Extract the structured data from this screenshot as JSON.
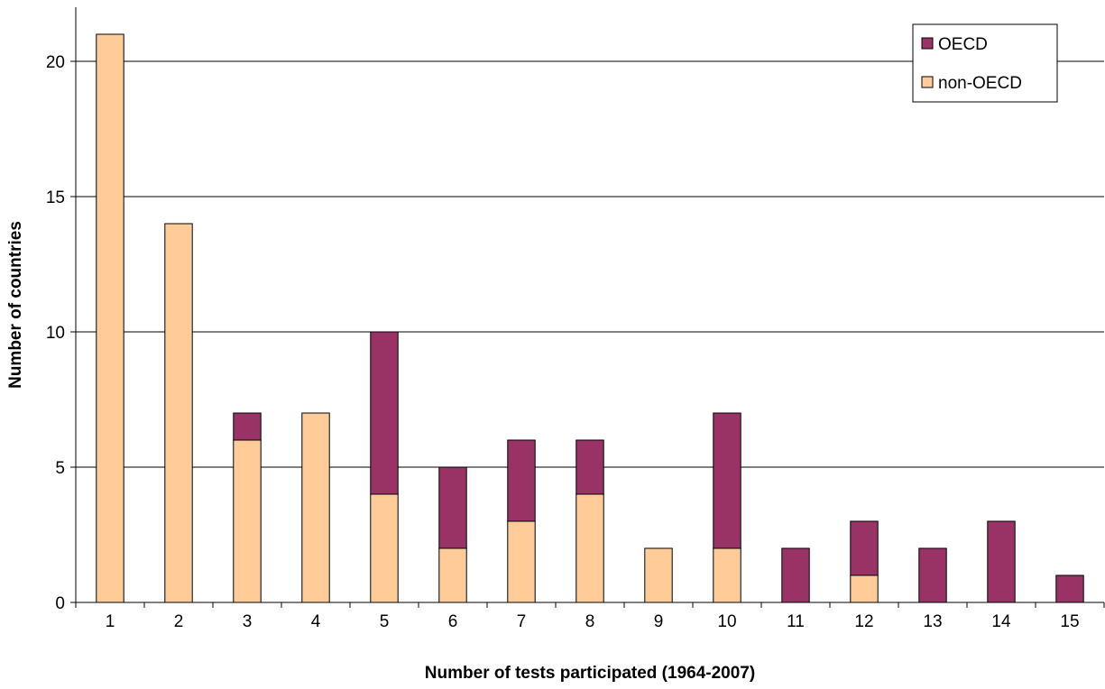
{
  "chart_data": {
    "type": "bar",
    "stacked": true,
    "title": "",
    "xlabel": "Number of tests participated (1964-2007)",
    "ylabel": "Number of countries",
    "categories": [
      "1",
      "2",
      "3",
      "4",
      "5",
      "6",
      "7",
      "8",
      "9",
      "10",
      "11",
      "12",
      "13",
      "14",
      "15"
    ],
    "series": [
      {
        "name": "non-OECD",
        "color": "#ffcc99",
        "values": [
          21,
          14,
          6,
          7,
          4,
          2,
          3,
          4,
          2,
          2,
          0,
          1,
          0,
          0,
          0
        ]
      },
      {
        "name": "OECD",
        "color": "#993366",
        "values": [
          0,
          0,
          1,
          0,
          6,
          3,
          3,
          2,
          0,
          5,
          2,
          2,
          2,
          3,
          1
        ]
      }
    ],
    "ylim": [
      0,
      22
    ],
    "yticks": [
      0,
      5,
      10,
      15,
      20
    ],
    "grid": true,
    "legend": {
      "placement": "top-right",
      "order": [
        "OECD",
        "non-OECD"
      ]
    }
  }
}
